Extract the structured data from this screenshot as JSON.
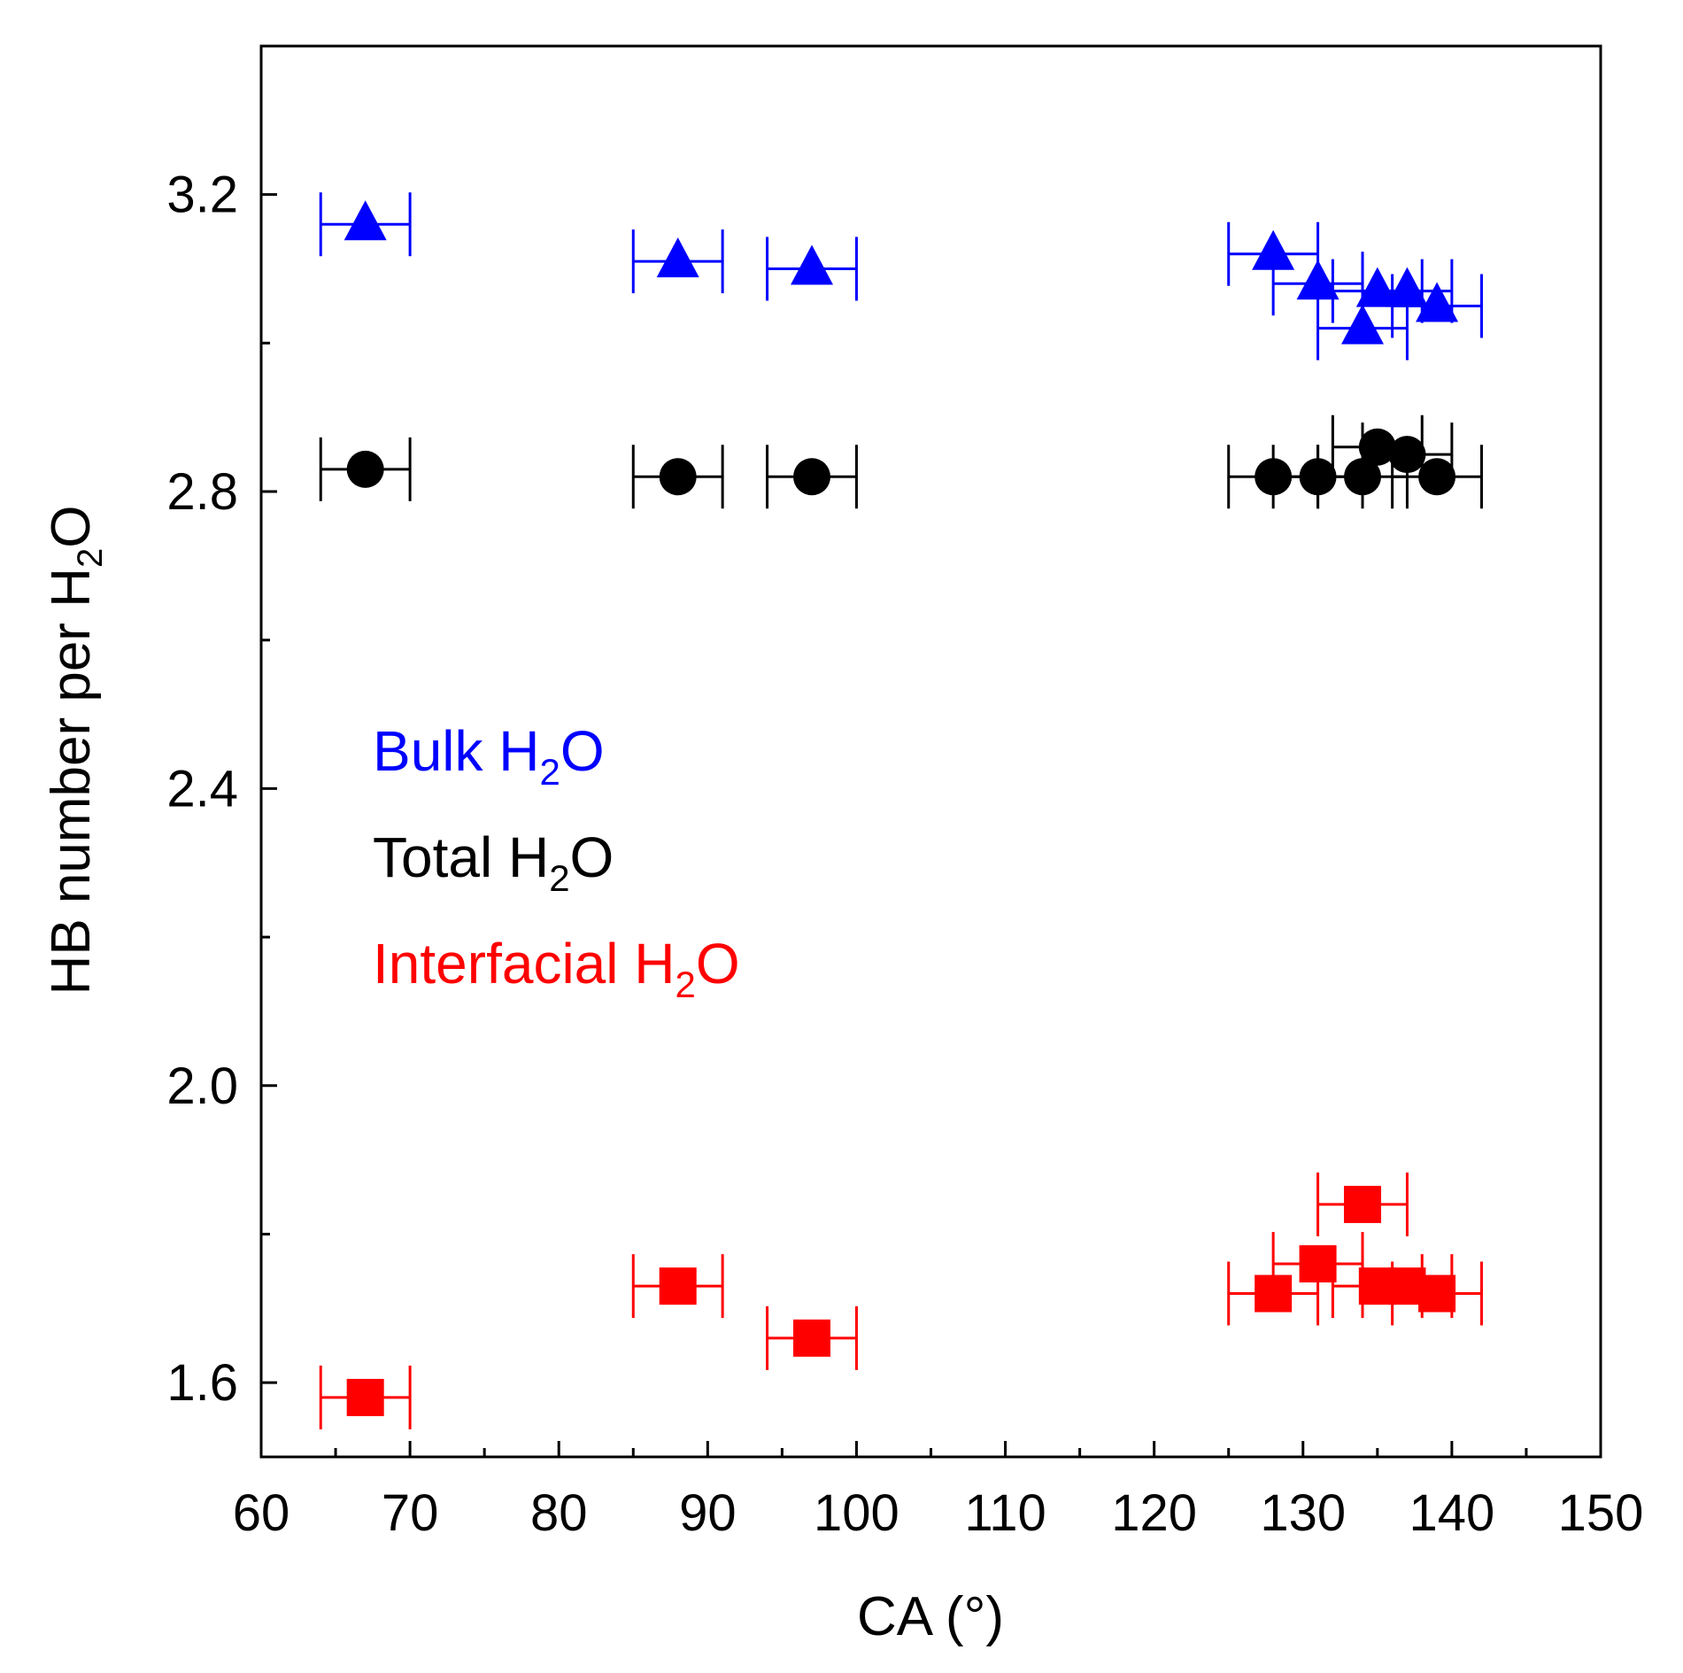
{
  "chart_data": {
    "type": "scatter",
    "title": "",
    "xlabel": "CA (°)",
    "ylabel_parts": [
      "HB number per H",
      "2",
      "O"
    ],
    "xlim": [
      60,
      150
    ],
    "ylim": [
      1.5,
      3.4
    ],
    "x_ticks": [
      60,
      70,
      80,
      90,
      100,
      110,
      120,
      130,
      140,
      150
    ],
    "x_tick_labels": [
      "60",
      "70",
      "80",
      "90",
      "100",
      "110",
      "120",
      "130",
      "140",
      "150"
    ],
    "x_minor_ticks": [
      65,
      75,
      85,
      95,
      105,
      115,
      125,
      135,
      145
    ],
    "y_ticks": [
      1.6,
      2.0,
      2.4,
      2.8,
      3.2
    ],
    "y_tick_labels": [
      "1.6",
      "2.0",
      "2.4",
      "2.8",
      "3.2"
    ],
    "y_minor_ticks": [
      1.8,
      2.2,
      2.6,
      3.0
    ],
    "grid": false,
    "x_error": 3,
    "series": [
      {
        "name": "Bulk H2O",
        "legend_parts": [
          "Bulk H",
          "2",
          "O"
        ],
        "color": "#0000ff",
        "marker": "triangle",
        "x": [
          67,
          88,
          97,
          128,
          131,
          135,
          137,
          139,
          134
        ],
        "y": [
          3.16,
          3.11,
          3.1,
          3.12,
          3.08,
          3.07,
          3.07,
          3.05,
          3.02
        ]
      },
      {
        "name": "Total H2O",
        "legend_parts": [
          "Total H",
          "2",
          "O"
        ],
        "color": "#000000",
        "marker": "circle",
        "x": [
          67,
          88,
          97,
          128,
          131,
          134,
          135,
          137,
          139
        ],
        "y": [
          2.83,
          2.82,
          2.82,
          2.82,
          2.82,
          2.82,
          2.86,
          2.85,
          2.82
        ]
      },
      {
        "name": "Interfacial H2O",
        "legend_parts": [
          "Interfacial H",
          "2",
          "O"
        ],
        "color": "#ff0000",
        "marker": "square",
        "x": [
          67,
          88,
          97,
          128,
          131,
          134,
          135,
          137,
          139
        ],
        "y": [
          1.58,
          1.73,
          1.66,
          1.72,
          1.76,
          1.84,
          1.73,
          1.73,
          1.72
        ]
      }
    ]
  }
}
